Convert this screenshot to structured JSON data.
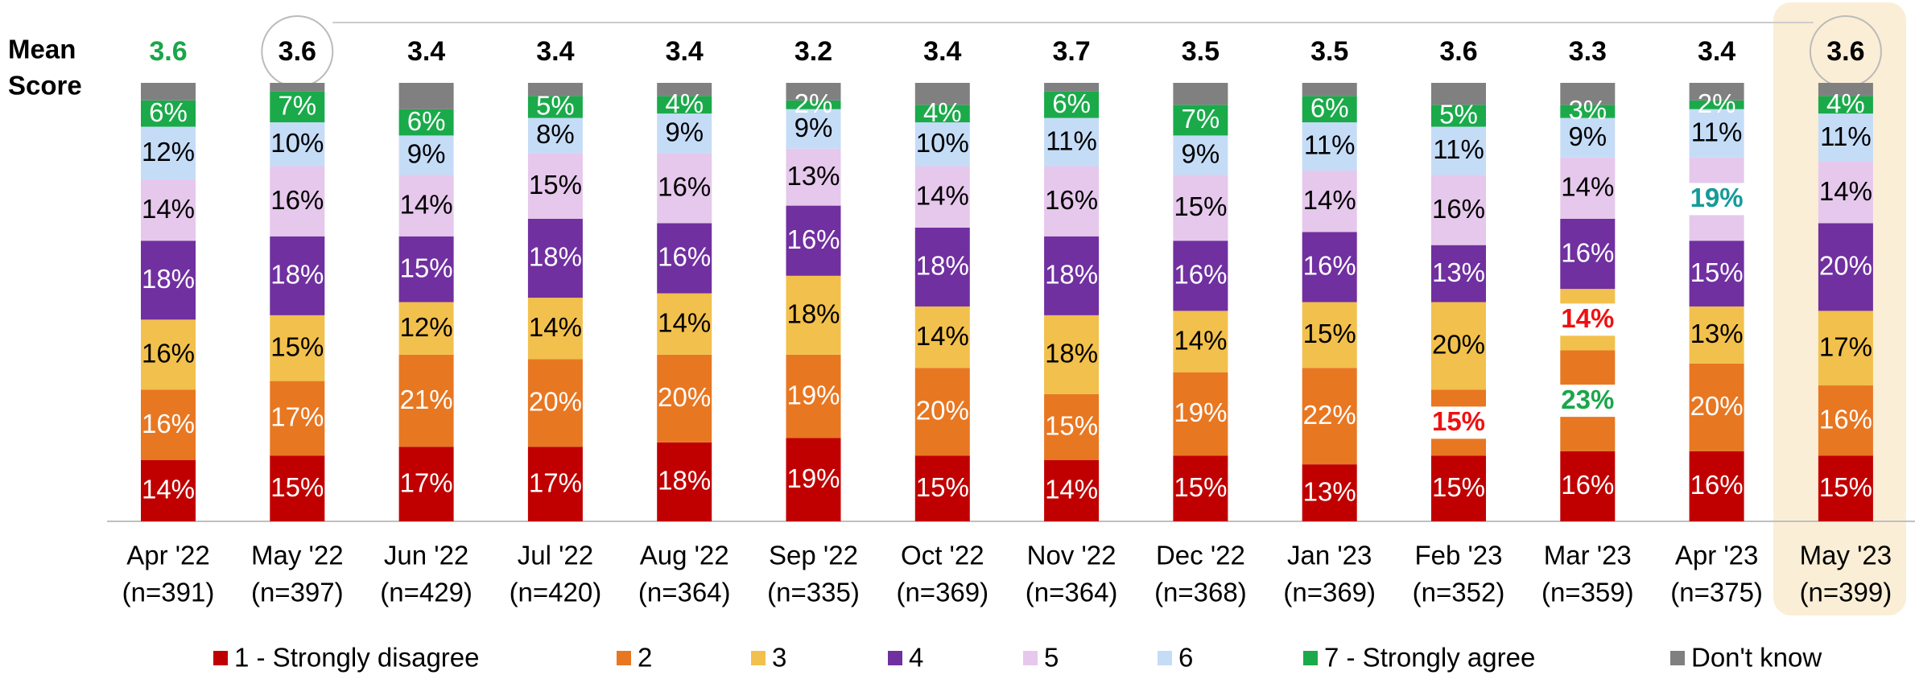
{
  "chart_data": {
    "type": "stacked_bar",
    "mean_label": [
      "Mean",
      "Score"
    ],
    "mean_scores": [
      3.6,
      3.6,
      3.4,
      3.4,
      3.4,
      3.2,
      3.4,
      3.7,
      3.5,
      3.5,
      3.6,
      3.3,
      3.4,
      3.6
    ],
    "mean_colors": [
      "#1aa64a",
      "#000000",
      "#000000",
      "#000000",
      "#000000",
      "#000000",
      "#000000",
      "#000000",
      "#000000",
      "#000000",
      "#000000",
      "#000000",
      "#000000",
      "#000000"
    ],
    "categories": [
      "Apr '22",
      "May '22",
      "Jun '22",
      "Jul '22",
      "Aug '22",
      "Sep '22",
      "Oct '22",
      "Nov '22",
      "Dec '22",
      "Jan '23",
      "Feb '23",
      "Mar '23",
      "Apr '23",
      "May '23"
    ],
    "sample_sizes": [
      "(n=391)",
      "(n=397)",
      "(n=429)",
      "(n=420)",
      "(n=364)",
      "(n=335)",
      "(n=369)",
      "(n=364)",
      "(n=368)",
      "(n=369)",
      "(n=352)",
      "(n=359)",
      "(n=375)",
      "(n=399)"
    ],
    "ylim": [
      0,
      100
    ],
    "series": [
      {
        "name": "1 - Strongly disagree",
        "color": "#c00000",
        "label_color": "#ffffff",
        "values": [
          14,
          15,
          17,
          17,
          18,
          19,
          15,
          14,
          15,
          13,
          15,
          16,
          16,
          15
        ],
        "value_labels": [
          "14%",
          "15%",
          "17%",
          "17%",
          "18%",
          "19%",
          "15%",
          "14%",
          "15%",
          "13%",
          "15%",
          "16%",
          "16%",
          "15%"
        ]
      },
      {
        "name": "2",
        "color": "#e87722",
        "label_color": "#ffffff",
        "values": [
          16,
          17,
          21,
          20,
          20,
          19,
          20,
          15,
          19,
          22,
          15,
          23,
          20,
          16
        ],
        "value_labels": [
          "16%",
          "17%",
          "21%",
          "20%",
          "20%",
          "19%",
          "20%",
          "15%",
          "19%",
          "22%",
          "15%",
          "23%",
          "20%",
          "16%"
        ]
      },
      {
        "name": "3",
        "color": "#f2c04c",
        "label_color": "#000000",
        "values": [
          16,
          15,
          12,
          14,
          14,
          18,
          14,
          18,
          14,
          15,
          20,
          14,
          13,
          17
        ],
        "value_labels": [
          "16%",
          "15%",
          "12%",
          "14%",
          "14%",
          "18%",
          "14%",
          "18%",
          "14%",
          "15%",
          "20%",
          "14%",
          "13%",
          "17%"
        ]
      },
      {
        "name": "4",
        "color": "#7030a0",
        "label_color": "#ffffff",
        "values": [
          18,
          18,
          15,
          18,
          16,
          16,
          18,
          18,
          16,
          16,
          13,
          16,
          15,
          20
        ],
        "value_labels": [
          "18%",
          "18%",
          "15%",
          "18%",
          "16%",
          "16%",
          "18%",
          "18%",
          "16%",
          "16%",
          "13%",
          "16%",
          "15%",
          "20%"
        ]
      },
      {
        "name": "5",
        "color": "#e6c8ec",
        "label_color": "#000000",
        "values": [
          14,
          16,
          14,
          15,
          16,
          13,
          14,
          16,
          15,
          14,
          16,
          14,
          19,
          14
        ],
        "value_labels": [
          "14%",
          "16%",
          "14%",
          "15%",
          "16%",
          "13%",
          "14%",
          "16%",
          "15%",
          "14%",
          "16%",
          "14%",
          "19%",
          "14%"
        ]
      },
      {
        "name": "6",
        "color": "#c5dcf7",
        "label_color": "#000000",
        "values": [
          12,
          10,
          9,
          8,
          9,
          9,
          10,
          11,
          9,
          11,
          11,
          9,
          11,
          11
        ],
        "value_labels": [
          "12%",
          "10%",
          "9%",
          "8%",
          "9%",
          "9%",
          "10%",
          "11%",
          "9%",
          "11%",
          "11%",
          "9%",
          "11%",
          "11%"
        ]
      },
      {
        "name": "7 - Strongly agree",
        "color": "#1aaa4a",
        "label_color": "#ffffff",
        "values": [
          6,
          7,
          6,
          5,
          4,
          2,
          4,
          6,
          7,
          6,
          5,
          3,
          2,
          4
        ],
        "value_labels": [
          "6%",
          "7%",
          "6%",
          "5%",
          "4%",
          "2%",
          "4%",
          "6%",
          "7%",
          "6%",
          "5%",
          "3%",
          "2%",
          "4%"
        ]
      },
      {
        "name": "Don't know",
        "color": "#808080",
        "values": [
          4,
          2,
          6,
          3,
          3,
          4,
          5,
          2,
          5,
          3,
          5,
          5,
          4,
          3
        ]
      }
    ],
    "highlights": [
      {
        "series": 1,
        "category": 10,
        "color": "#ee1111"
      },
      {
        "series": 2,
        "category": 11,
        "color": "#ee1111"
      },
      {
        "series": 1,
        "category": 11,
        "color": "#1aa64a"
      },
      {
        "series": 4,
        "category": 12,
        "color": "#169a9a"
      }
    ]
  }
}
